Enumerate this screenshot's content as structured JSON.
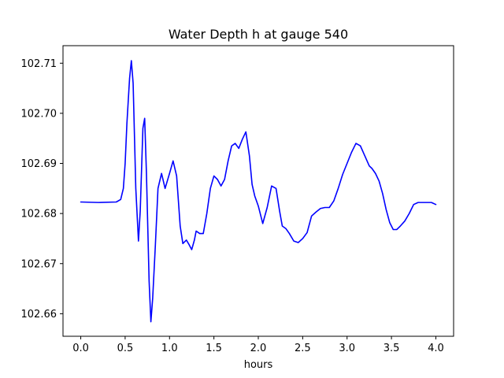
{
  "chart_data": {
    "type": "line",
    "title": "Water Depth h at gauge 540",
    "xlabel": "hours",
    "ylabel": "",
    "xlim": [
      -0.2,
      4.2
    ],
    "ylim": [
      102.6555,
      102.7135
    ],
    "x_ticks": [
      "0.0",
      "0.5",
      "1.0",
      "1.5",
      "2.0",
      "2.5",
      "3.0",
      "3.5",
      "4.0"
    ],
    "y_ticks": [
      "102.66",
      "102.67",
      "102.68",
      "102.69",
      "102.70",
      "102.71"
    ],
    "grid": false,
    "legend": "none",
    "colors": {
      "line": "#0000ff",
      "axes": "#000000",
      "background": "#ffffff"
    },
    "series": [
      {
        "x": [
          0.0,
          0.2,
          0.4,
          0.45,
          0.48,
          0.5,
          0.52,
          0.55,
          0.57,
          0.59,
          0.62,
          0.65,
          0.67,
          0.7,
          0.72,
          0.74,
          0.77,
          0.79,
          0.81,
          0.84,
          0.87,
          0.91,
          0.95,
          1.0,
          1.04,
          1.08,
          1.12,
          1.15,
          1.19,
          1.22,
          1.25,
          1.28,
          1.3,
          1.34,
          1.38,
          1.42,
          1.46,
          1.5,
          1.54,
          1.58,
          1.62,
          1.66,
          1.7,
          1.74,
          1.78,
          1.82,
          1.86,
          1.9,
          1.93,
          1.96,
          2.0,
          2.05,
          2.1,
          2.15,
          2.2,
          2.24,
          2.27,
          2.31,
          2.35,
          2.4,
          2.45,
          2.5,
          2.55,
          2.6,
          2.65,
          2.7,
          2.75,
          2.8,
          2.85,
          2.9,
          2.95,
          3.0,
          3.05,
          3.1,
          3.15,
          3.2,
          3.25,
          3.28,
          3.32,
          3.36,
          3.4,
          3.44,
          3.48,
          3.52,
          3.56,
          3.6,
          3.65,
          3.7,
          3.75,
          3.8,
          3.85,
          3.9,
          3.95,
          4.0
        ],
        "values": [
          102.6823,
          102.6822,
          102.6823,
          102.6828,
          102.685,
          102.69,
          102.698,
          102.707,
          102.7105,
          102.706,
          102.685,
          102.6745,
          102.6805,
          102.697,
          102.699,
          102.688,
          102.6665,
          102.6584,
          102.663,
          102.6735,
          102.685,
          102.688,
          102.685,
          102.688,
          102.6905,
          102.6875,
          102.6775,
          102.674,
          102.6747,
          102.6738,
          102.6728,
          102.6747,
          102.6765,
          102.676,
          102.676,
          102.68,
          102.685,
          102.6875,
          102.6868,
          102.6855,
          102.6868,
          102.6905,
          102.6935,
          102.694,
          102.693,
          102.6948,
          102.6963,
          102.6915,
          102.6858,
          102.6835,
          102.6815,
          102.678,
          102.6812,
          102.6855,
          102.685,
          102.6805,
          102.6775,
          102.677,
          102.676,
          102.6745,
          102.6742,
          102.675,
          102.6762,
          102.6795,
          102.6803,
          102.681,
          102.6812,
          102.6812,
          102.6825,
          102.685,
          102.6878,
          102.69,
          102.6922,
          102.694,
          102.6935,
          102.6915,
          102.6895,
          102.689,
          102.688,
          102.6865,
          102.684,
          102.6808,
          102.6782,
          102.6768,
          102.6768,
          102.6775,
          102.6785,
          102.68,
          102.6818,
          102.6822,
          102.6822,
          102.6822,
          102.6822,
          102.6818
        ]
      }
    ]
  }
}
